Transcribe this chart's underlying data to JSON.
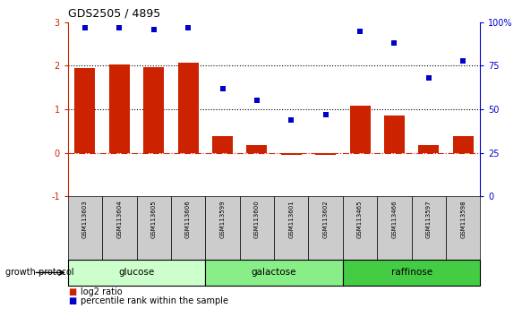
{
  "title": "GDS2505 / 4895",
  "samples": [
    "GSM113603",
    "GSM113604",
    "GSM113605",
    "GSM113606",
    "GSM113599",
    "GSM113600",
    "GSM113601",
    "GSM113602",
    "GSM113465",
    "GSM113466",
    "GSM113597",
    "GSM113598"
  ],
  "log2_ratio": [
    1.95,
    2.02,
    1.97,
    2.07,
    0.38,
    0.18,
    -0.05,
    -0.05,
    1.08,
    0.85,
    0.18,
    0.38
  ],
  "percentile_rank": [
    97,
    97,
    96,
    97,
    62,
    55,
    44,
    47,
    95,
    88,
    68,
    78
  ],
  "groups": [
    {
      "label": "glucose",
      "start": 0,
      "end": 4,
      "color": "#ccffcc"
    },
    {
      "label": "galactose",
      "start": 4,
      "end": 8,
      "color": "#88ee88"
    },
    {
      "label": "raffinose",
      "start": 8,
      "end": 12,
      "color": "#44cc44"
    }
  ],
  "bar_color": "#cc2200",
  "scatter_color": "#0000cc",
  "ylim_left": [
    -1,
    3
  ],
  "ylim_right": [
    0,
    100
  ],
  "yticks_left": [
    -1,
    0,
    1,
    2,
    3
  ],
  "yticks_right": [
    0,
    25,
    50,
    75,
    100
  ],
  "yticklabels_right": [
    "0",
    "25",
    "50",
    "75",
    "100%"
  ],
  "hlines": [
    0,
    1,
    2
  ],
  "hline_styles": [
    "dashdot",
    "dotted",
    "dotted"
  ],
  "hline_colors": [
    "#cc2200",
    "#000000",
    "#000000"
  ],
  "growth_protocol_label": "growth protocol",
  "legend_items": [
    {
      "color": "#cc2200",
      "label": "log2 ratio"
    },
    {
      "color": "#0000cc",
      "label": "percentile rank within the sample"
    }
  ]
}
